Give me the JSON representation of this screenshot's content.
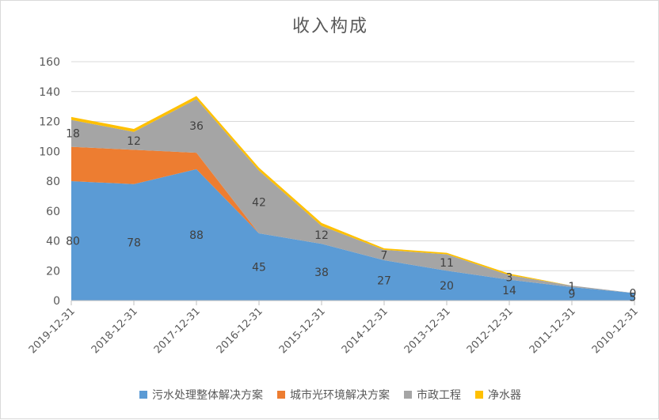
{
  "chart_data": {
    "type": "area",
    "stacked": true,
    "title": "收入构成",
    "categories": [
      "2019-12-31",
      "2018-12-31",
      "2017-12-31",
      "2016-12-31",
      "2015-12-31",
      "2014-12-31",
      "2013-12-31",
      "2012-12-31",
      "2011-12-31",
      "2010-12-31"
    ],
    "ylim": [
      0,
      160
    ],
    "yticks": [
      0,
      20,
      40,
      60,
      80,
      100,
      120,
      140,
      160
    ],
    "grid": true,
    "legend_position": "bottom",
    "series": [
      {
        "name": "污水处理整体解决方案",
        "color": "#5b9bd5",
        "values": [
          80,
          78,
          88,
          45,
          38,
          27,
          20,
          14,
          9,
          5
        ],
        "labels": [
          "80",
          "78",
          "88",
          "45",
          "38",
          "27",
          "20",
          "14",
          "9",
          "5"
        ]
      },
      {
        "name": "城市光环境解决方案",
        "color": "#ed7d31",
        "values": [
          23,
          23,
          11,
          0,
          0,
          0,
          0,
          0,
          0,
          0
        ],
        "labels": null
      },
      {
        "name": "市政工程",
        "color": "#a5a5a5",
        "values": [
          18,
          12,
          36,
          42,
          12,
          7,
          11,
          3,
          1,
          0
        ],
        "labels": [
          "18",
          "12",
          "36",
          "42",
          "12",
          "7",
          "11",
          "3",
          "1",
          "0"
        ]
      },
      {
        "name": "净水器",
        "color": "#ffc000",
        "values": [
          2,
          2,
          2,
          2,
          2,
          1,
          1,
          1,
          0,
          0
        ],
        "labels": null
      }
    ]
  }
}
